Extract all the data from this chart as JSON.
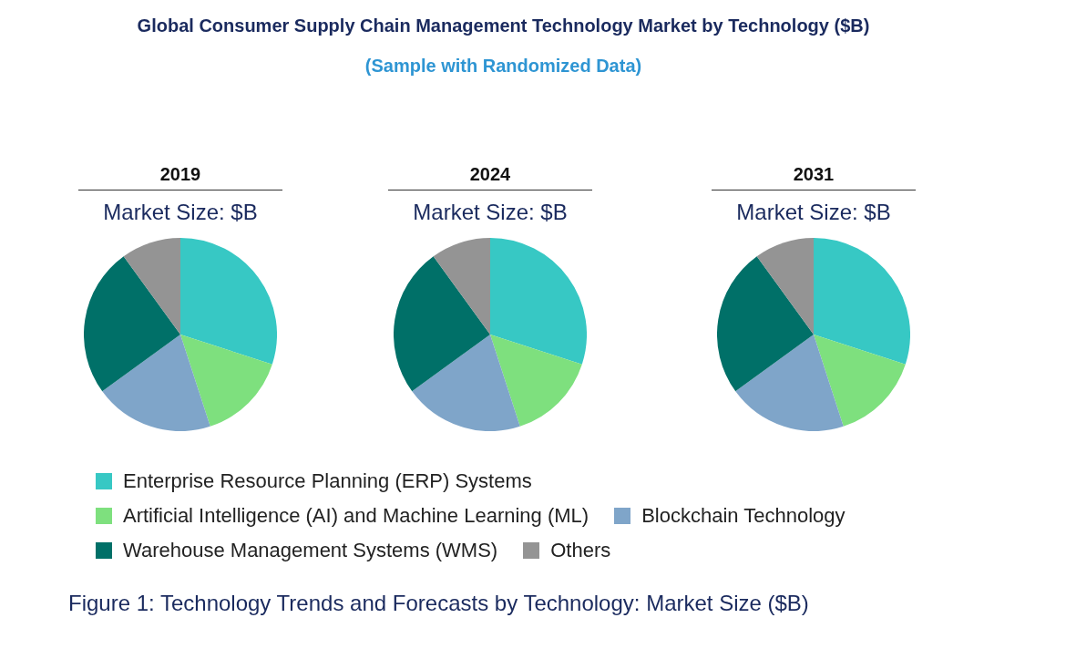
{
  "chart_data": [
    {
      "type": "other",
      "title": "Global Consumer Supply Chain Management Technology Market by Technology ($B)",
      "subtitle": "(Sample with Randomized Data)",
      "annotations": [
        "Figure 1: Technology Trends and Forecasts by Technology: Market Size ($B)"
      ]
    },
    {
      "type": "pie",
      "title": "2019",
      "subtitle": "Market Size: $B",
      "legend": "bottom",
      "categories": [
        "Enterprise Resource Planning (ERP) Systems",
        "Artificial Intelligence (AI) and Machine Learning (ML)",
        "Blockchain Technology",
        "Warehouse Management Systems (WMS)",
        "Others"
      ],
      "values": [
        30,
        15,
        20,
        25,
        10
      ],
      "colors": [
        "#37c8c4",
        "#7ee07e",
        "#7fa5c9",
        "#007068",
        "#949494"
      ]
    },
    {
      "type": "pie",
      "title": "2024",
      "subtitle": "Market Size: $B",
      "categories": [
        null,
        null,
        null,
        null,
        null
      ],
      "values": [
        30,
        15,
        20,
        25,
        10
      ],
      "colors": [
        "#37c8c4",
        "#7ee07e",
        "#7fa5c9",
        "#007068",
        "#949494"
      ]
    },
    {
      "type": "pie",
      "title": "2031",
      "subtitle": "Market Size: $B",
      "categories": [
        null,
        null,
        null,
        null,
        null
      ],
      "values": [
        30,
        15,
        20,
        25,
        10
      ],
      "colors": [
        "#37c8c4",
        "#7ee07e",
        "#7fa5c9",
        "#007068",
        "#949494"
      ]
    }
  ]
}
